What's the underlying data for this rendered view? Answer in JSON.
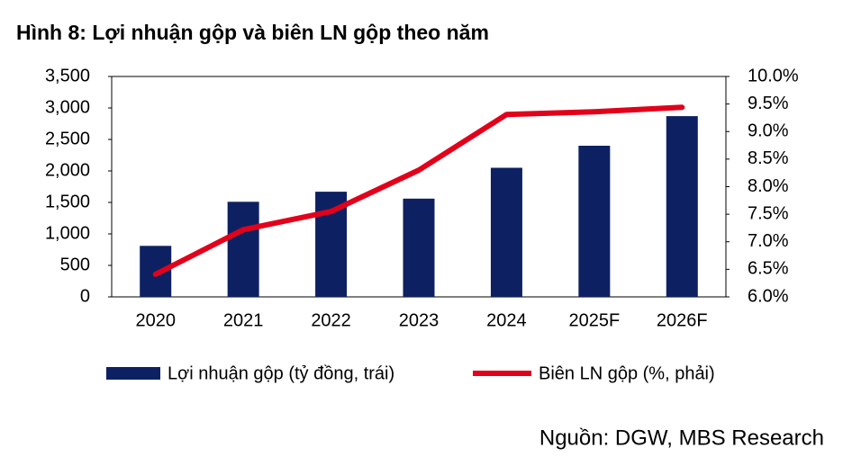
{
  "chart_data": {
    "type": "bar-line",
    "title": "Hình 8: Lợi nhuận gộp và biên LN gộp theo năm",
    "source": "Nguồn: DGW, MBS Research",
    "categories": [
      "2020",
      "2021",
      "2022",
      "2023",
      "2024",
      "2025F",
      "2026F"
    ],
    "series": [
      {
        "name": "Lợi nhuận gộp (tỷ đồng, trái)",
        "type": "bar",
        "color": "#0d2162",
        "values": [
          810,
          1510,
          1670,
          1560,
          2050,
          2400,
          2870
        ]
      },
      {
        "name": "Biên LN gộp (%, phải)",
        "type": "line",
        "axis": "y2",
        "color": "#e2001a",
        "values": [
          6.41,
          7.22,
          7.55,
          8.3,
          9.31,
          9.36,
          9.44
        ]
      }
    ],
    "ylim": [
      0,
      3500
    ],
    "yticks": [
      0,
      500,
      {
        "value": 1000,
        "label": "1,000"
      },
      {
        "value": 1500,
        "label": "1,500"
      },
      {
        "value": 2000,
        "label": "2,000"
      },
      {
        "value": 2500,
        "label": "2,500"
      },
      {
        "value": 3000,
        "label": "3,000"
      },
      {
        "value": 3500,
        "label": "3,500"
      }
    ],
    "y2lim": [
      6,
      10
    ],
    "y2ticks": [
      {
        "value": 6,
        "label": "6.0%"
      },
      {
        "value": 6.5,
        "label": "6.5%"
      },
      {
        "value": 7,
        "label": "7.0%"
      },
      {
        "value": 7.5,
        "label": "7.5%"
      },
      {
        "value": 8,
        "label": "8.0%"
      },
      {
        "value": 8.5,
        "label": "8.5%"
      },
      {
        "value": 9,
        "label": "9.0%"
      },
      {
        "value": 9.5,
        "label": "9.5%"
      },
      {
        "value": 10,
        "label": "10.0%"
      }
    ]
  }
}
